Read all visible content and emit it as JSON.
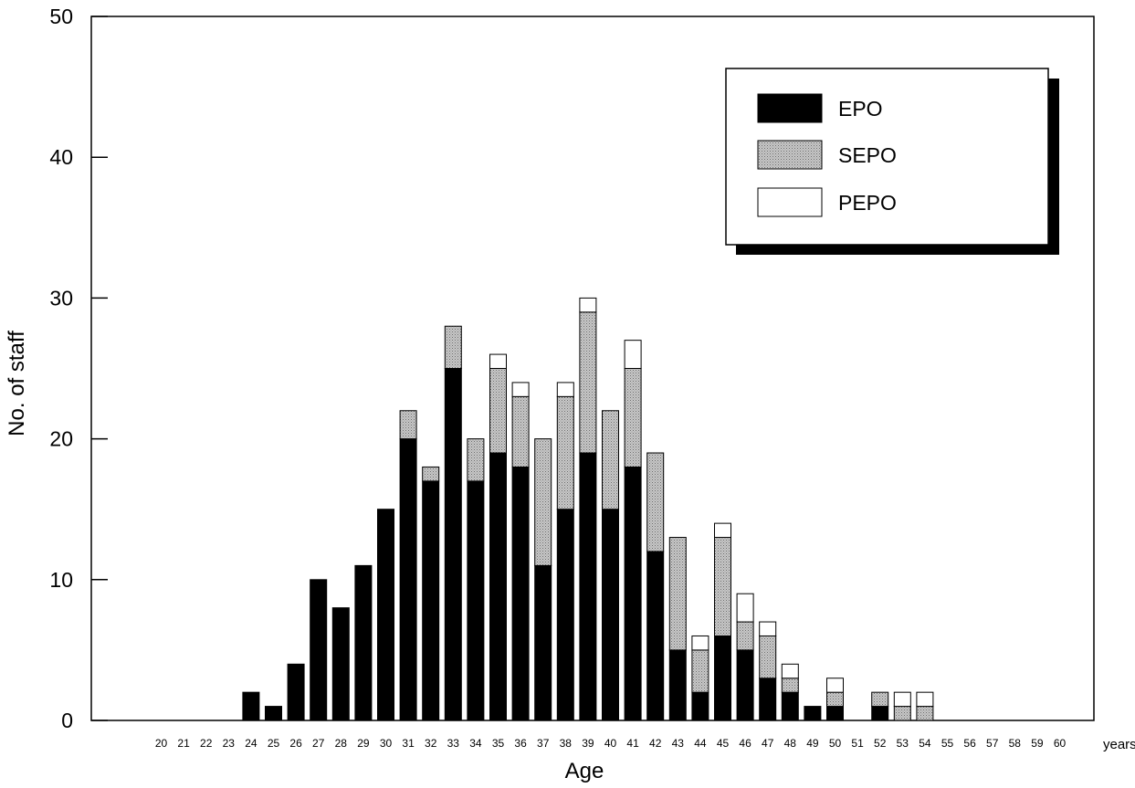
{
  "chart_data": {
    "type": "bar",
    "stacked": true,
    "title": "",
    "xlabel": "Age",
    "ylabel": "No. of staff",
    "x_unit_label": "years",
    "ylim": [
      0,
      50
    ],
    "y_ticks": [
      0,
      10,
      20,
      30,
      40,
      50
    ],
    "categories": [
      "20",
      "21",
      "22",
      "23",
      "24",
      "25",
      "26",
      "27",
      "28",
      "29",
      "30",
      "31",
      "32",
      "33",
      "34",
      "35",
      "36",
      "37",
      "38",
      "39",
      "40",
      "41",
      "42",
      "43",
      "44",
      "45",
      "46",
      "47",
      "48",
      "49",
      "50",
      "51",
      "52",
      "53",
      "54",
      "55",
      "56",
      "57",
      "58",
      "59",
      "60"
    ],
    "series": [
      {
        "name": "EPO",
        "color": "#000000",
        "values": [
          0,
          0,
          0,
          0,
          2,
          1,
          4,
          10,
          8,
          11,
          15,
          20,
          17,
          25,
          17,
          19,
          18,
          11,
          15,
          19,
          15,
          18,
          12,
          5,
          2,
          6,
          5,
          3,
          2,
          1,
          1,
          0,
          1,
          0,
          0,
          0,
          0,
          0,
          0,
          0,
          0
        ]
      },
      {
        "name": "SEPO",
        "color": "#b4b4b4",
        "values": [
          0,
          0,
          0,
          0,
          0,
          0,
          0,
          0,
          0,
          0,
          0,
          2,
          1,
          3,
          3,
          6,
          5,
          9,
          8,
          10,
          7,
          7,
          7,
          8,
          3,
          7,
          2,
          3,
          1,
          0,
          1,
          0,
          1,
          1,
          1,
          0,
          0,
          0,
          0,
          0,
          0
        ]
      },
      {
        "name": "PEPO",
        "color": "#ffffff",
        "values": [
          0,
          0,
          0,
          0,
          0,
          0,
          0,
          0,
          0,
          0,
          0,
          0,
          0,
          0,
          0,
          1,
          1,
          0,
          1,
          1,
          0,
          2,
          0,
          0,
          1,
          1,
          2,
          1,
          1,
          0,
          1,
          0,
          0,
          1,
          1,
          0,
          0,
          0,
          0,
          0,
          0
        ]
      }
    ],
    "legend_position": "top-right",
    "grid": false
  }
}
